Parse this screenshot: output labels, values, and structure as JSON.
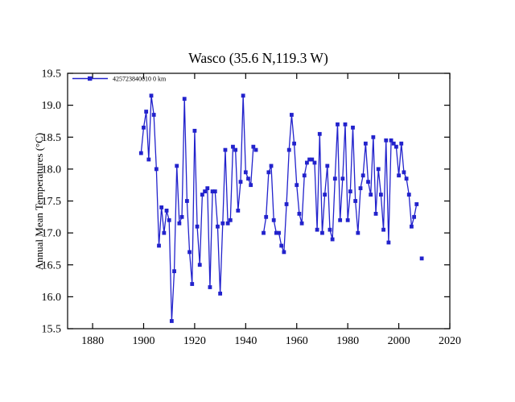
{
  "figure": {
    "background": "#ffffff",
    "axis_color": "#000000"
  },
  "chart_data": {
    "type": "line",
    "title": "Wasco (35.6 N,119.3 W)",
    "xlabel": "",
    "ylabel": "Annual Mean Temperatures (°C)",
    "legend": {
      "position": "top-left-inside",
      "entries": [
        "425723840010 0 km"
      ]
    },
    "legend_label": "425723840010 0 km",
    "line_color": "#2222cc",
    "marker": "square",
    "grid": false,
    "xlim": [
      1870.2,
      2020
    ],
    "ylim": [
      15.5,
      19.5
    ],
    "xticks": [
      1880,
      1900,
      1920,
      1940,
      1960,
      1980,
      2000,
      2020
    ],
    "yticks": [
      15.5,
      16.0,
      16.5,
      17.0,
      17.5,
      18.0,
      18.5,
      19.0,
      19.5
    ],
    "note_gaps": "no data 1945-1946 and 2008; 2009 point isolated",
    "series": [
      {
        "name": "425723840010 0 km",
        "points": [
          [
            1899,
            18.25
          ],
          [
            1900,
            18.65
          ],
          [
            1901,
            18.9
          ],
          [
            1902,
            18.15
          ],
          [
            1903,
            19.15
          ],
          [
            1904,
            18.85
          ],
          [
            1905,
            18.0
          ],
          [
            1906,
            16.8
          ],
          [
            1907,
            17.4
          ],
          [
            1908,
            17.0
          ],
          [
            1909,
            17.35
          ],
          [
            1910,
            17.2
          ],
          [
            1911,
            15.62
          ],
          [
            1912,
            16.4
          ],
          [
            1913,
            18.05
          ],
          [
            1914,
            17.15
          ],
          [
            1915,
            17.25
          ],
          [
            1916,
            19.1
          ],
          [
            1917,
            17.5
          ],
          [
            1918,
            16.7
          ],
          [
            1919,
            16.2
          ],
          [
            1920,
            18.6
          ],
          [
            1921,
            17.1
          ],
          [
            1922,
            16.5
          ],
          [
            1923,
            17.6
          ],
          [
            1924,
            17.65
          ],
          [
            1925,
            17.7
          ],
          [
            1926,
            16.15
          ],
          [
            1927,
            17.65
          ],
          [
            1928,
            17.65
          ],
          [
            1929,
            17.1
          ],
          [
            1930,
            16.05
          ],
          [
            1931,
            17.15
          ],
          [
            1932,
            18.3
          ],
          [
            1933,
            17.15
          ],
          [
            1934,
            17.2
          ],
          [
            1935,
            18.35
          ],
          [
            1936,
            18.3
          ],
          [
            1937,
            17.35
          ],
          [
            1938,
            17.8
          ],
          [
            1939,
            19.15
          ],
          [
            1940,
            17.95
          ],
          [
            1941,
            17.85
          ],
          [
            1942,
            17.75
          ],
          [
            1943,
            18.35
          ],
          [
            1944,
            18.3
          ],
          [
            1947,
            17.0
          ],
          [
            1948,
            17.25
          ],
          [
            1949,
            17.95
          ],
          [
            1950,
            18.05
          ],
          [
            1951,
            17.2
          ],
          [
            1952,
            17.0
          ],
          [
            1953,
            17.0
          ],
          [
            1954,
            16.8
          ],
          [
            1955,
            16.7
          ],
          [
            1956,
            17.45
          ],
          [
            1957,
            18.3
          ],
          [
            1958,
            18.85
          ],
          [
            1959,
            18.4
          ],
          [
            1960,
            17.75
          ],
          [
            1961,
            17.3
          ],
          [
            1962,
            17.15
          ],
          [
            1963,
            17.9
          ],
          [
            1964,
            18.1
          ],
          [
            1965,
            18.15
          ],
          [
            1966,
            18.15
          ],
          [
            1967,
            18.1
          ],
          [
            1968,
            17.05
          ],
          [
            1969,
            18.55
          ],
          [
            1970,
            17.0
          ],
          [
            1971,
            17.6
          ],
          [
            1972,
            18.05
          ],
          [
            1973,
            17.05
          ],
          [
            1974,
            16.9
          ],
          [
            1975,
            17.85
          ],
          [
            1976,
            18.7
          ],
          [
            1977,
            17.2
          ],
          [
            1978,
            17.85
          ],
          [
            1979,
            18.7
          ],
          [
            1980,
            17.2
          ],
          [
            1981,
            17.65
          ],
          [
            1982,
            18.65
          ],
          [
            1983,
            17.5
          ],
          [
            1984,
            17.0
          ],
          [
            1985,
            17.7
          ],
          [
            1986,
            17.9
          ],
          [
            1987,
            18.4
          ],
          [
            1988,
            17.8
          ],
          [
            1989,
            17.6
          ],
          [
            1990,
            18.5
          ],
          [
            1991,
            17.3
          ],
          [
            1992,
            18.0
          ],
          [
            1993,
            17.6
          ],
          [
            1994,
            17.05
          ],
          [
            1995,
            18.45
          ],
          [
            1996,
            16.85
          ],
          [
            1997,
            18.45
          ],
          [
            1998,
            18.4
          ],
          [
            1999,
            18.35
          ],
          [
            2000,
            17.9
          ],
          [
            2001,
            18.4
          ],
          [
            2002,
            17.95
          ],
          [
            2003,
            17.85
          ],
          [
            2004,
            17.6
          ],
          [
            2005,
            17.1
          ],
          [
            2006,
            17.25
          ],
          [
            2007,
            17.45
          ],
          [
            2009,
            16.6
          ]
        ]
      }
    ]
  }
}
